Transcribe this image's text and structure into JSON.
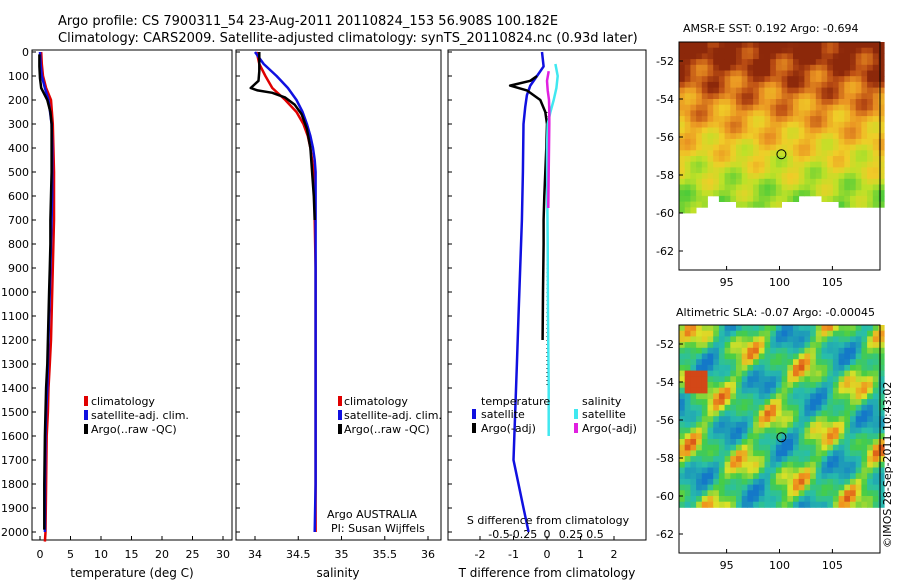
{
  "title_line1": "Argo profile: CS 7900311_54 23-Aug-2011 20110824_153 56.908S 100.182E",
  "title_line2": "Climatology: CARS2009. Satellite-adjusted climatology: synTS_20110824.nc (0.93d later)",
  "timestamp": "©IMOS 28-Sep-2011 10:43:02",
  "colors": {
    "red": "#e00000",
    "blue": "#1010e0",
    "black": "#000000",
    "cyan": "#40e8f0",
    "magenta": "#e020e0"
  },
  "chart_data": [
    {
      "id": "temperature",
      "type": "line",
      "xlabel": "temperature (deg C)",
      "xlim": [
        -2,
        31
      ],
      "xticks": [
        "0",
        "5",
        "10",
        "15",
        "20",
        "25",
        "30"
      ],
      "xtick_values": [
        0,
        5,
        10,
        15,
        20,
        25,
        30
      ],
      "ylim": [
        0,
        2050
      ],
      "ytick_values": [
        0,
        100,
        200,
        300,
        400,
        500,
        600,
        700,
        800,
        900,
        1000,
        1100,
        1200,
        1300,
        1400,
        1500,
        1600,
        1700,
        1800,
        1900,
        2000
      ],
      "yticks": [
        "0",
        "100",
        "200",
        "300",
        "400",
        "500",
        "600",
        "700",
        "800",
        "900",
        "1000",
        "1100",
        "1200",
        "1300",
        "1400",
        "1500",
        "1600",
        "1700",
        "1800",
        "1900",
        "2000"
      ],
      "legend": [
        "climatology",
        "satellite-adj. clim.",
        "Argo(..raw -QC)"
      ],
      "series": [
        {
          "name": "climatology",
          "color": "red",
          "x": [
            0.2,
            0.3,
            0.5,
            1.0,
            1.8,
            2.1,
            2.2,
            2.3,
            2.3,
            2.3,
            2.2,
            2.1,
            2.0,
            1.9,
            1.8,
            1.6,
            1.4,
            1.3,
            1.1,
            1.0,
            0.9,
            0.8
          ],
          "y": [
            0,
            50,
            100,
            150,
            200,
            300,
            400,
            500,
            600,
            700,
            800,
            900,
            1000,
            1100,
            1200,
            1300,
            1400,
            1500,
            1600,
            1800,
            2000,
            2040
          ]
        },
        {
          "name": "satellite-adj. clim.",
          "color": "blue",
          "x": [
            0.0,
            0.1,
            0.3,
            0.8,
            1.4,
            1.9,
            2.0,
            2.0,
            2.0,
            1.9,
            1.8,
            1.7,
            1.6,
            1.5,
            1.4,
            1.3,
            1.2,
            1.0,
            0.9,
            0.8,
            0.8
          ],
          "y": [
            0,
            50,
            100,
            150,
            200,
            300,
            400,
            500,
            600,
            700,
            800,
            900,
            1000,
            1100,
            1200,
            1300,
            1400,
            1500,
            1600,
            1800,
            2000
          ]
        },
        {
          "name": "Argo(..raw -QC)",
          "color": "black",
          "x": [
            -0.1,
            -0.1,
            0.0,
            0.2,
            1.2,
            1.7,
            1.9,
            1.9,
            1.9,
            1.8,
            1.7,
            1.7,
            1.6,
            1.5,
            1.4,
            1.3,
            1.2,
            1.0,
            0.9,
            0.8,
            0.7,
            0.7
          ],
          "y": [
            10,
            60,
            110,
            150,
            200,
            250,
            300,
            400,
            500,
            600,
            700,
            800,
            900,
            1000,
            1100,
            1200,
            1300,
            1400,
            1500,
            1600,
            1800,
            1990
          ]
        }
      ]
    },
    {
      "id": "salinity",
      "type": "line",
      "xlabel": "salinity",
      "xlim": [
        33.8,
        36.05
      ],
      "xticks": [
        "34",
        "34.5",
        "35",
        "35.5",
        "36"
      ],
      "xtick_values": [
        34,
        34.5,
        35,
        35.5,
        36
      ],
      "ylim": [
        0,
        2050
      ],
      "legend": [
        "climatology",
        "satellite-adj. clim.",
        "Argo(..raw -QC)"
      ],
      "annotation": [
        "Argo AUSTRALIA",
        "PI: Susan Wijffels"
      ],
      "series": [
        {
          "name": "climatology",
          "color": "red",
          "x": [
            34.02,
            34.05,
            34.12,
            34.2,
            34.35,
            34.48,
            34.56,
            34.61,
            34.64,
            34.66,
            34.68,
            34.69,
            34.69,
            34.7,
            34.7,
            34.7,
            34.7,
            34.7
          ],
          "y": [
            0,
            50,
            100,
            150,
            200,
            250,
            300,
            350,
            400,
            450,
            500,
            600,
            700,
            900,
            1200,
            1500,
            1800,
            2000
          ]
        },
        {
          "name": "satellite-adj. clim.",
          "color": "blue",
          "x": [
            34.0,
            34.1,
            34.25,
            34.38,
            34.48,
            34.55,
            34.6,
            34.64,
            34.67,
            34.69,
            34.7,
            34.7,
            34.7,
            34.7,
            34.7,
            34.7,
            34.69
          ],
          "y": [
            0,
            50,
            100,
            150,
            200,
            250,
            300,
            350,
            400,
            450,
            500,
            600,
            800,
            1100,
            1500,
            1800,
            2000
          ]
        },
        {
          "name": "Argo(..raw -QC)",
          "color": "black",
          "x": [
            34.05,
            34.05,
            34.04,
            33.95,
            34.03,
            34.2,
            34.35,
            34.46,
            34.54,
            34.6,
            34.64,
            34.66,
            34.68,
            34.69
          ],
          "y": [
            0,
            80,
            120,
            150,
            160,
            170,
            190,
            220,
            260,
            320,
            400,
            500,
            600,
            700
          ]
        }
      ]
    },
    {
      "id": "difference",
      "type": "line",
      "xlabel": "T difference from climatology",
      "xlabel_top": "S difference from climatology",
      "xlim": [
        -2.8,
        2.8
      ],
      "xticks": [
        "-2",
        "-1",
        "0",
        "1",
        "2"
      ],
      "xtick_values": [
        -2,
        -1,
        0,
        1,
        2
      ],
      "xticks_top": [
        "-0.5",
        "-0.25",
        "0",
        "0.25",
        "0.5"
      ],
      "xtick_top_values": [
        -0.5,
        -0.25,
        0,
        0.25,
        0.5
      ],
      "ylim": [
        0,
        2050
      ],
      "legend_left_title": "temperature",
      "legend_right_title": "salinity",
      "legend_left": [
        "satellite",
        "Argo(-adj)"
      ],
      "legend_right": [
        "satellite",
        "Argo(-adj)"
      ],
      "series": [
        {
          "name": "T satellite",
          "color": "blue",
          "x": [
            -0.15,
            -0.1,
            -0.3,
            -0.5,
            -0.6,
            -0.65,
            -0.7,
            -0.72,
            -0.75,
            -0.8,
            -0.85,
            -0.9,
            -0.95,
            -1.0,
            -0.7,
            -0.55
          ],
          "y": [
            0,
            60,
            100,
            140,
            180,
            230,
            300,
            500,
            700,
            900,
            1100,
            1300,
            1500,
            1700,
            1900,
            2000
          ]
        },
        {
          "name": "T Argo(-adj)",
          "color": "black",
          "x": [
            -0.3,
            -0.5,
            -1.1,
            -0.6,
            -0.2,
            -0.05,
            0.0,
            -0.02,
            -0.05,
            -0.08,
            -0.1,
            -0.1,
            -0.12,
            -0.13
          ],
          "y": [
            100,
            120,
            140,
            160,
            200,
            250,
            300,
            400,
            500,
            600,
            700,
            800,
            1000,
            1200
          ]
        },
        {
          "name": "S satellite",
          "color": "cyan",
          "x": [
            0.25,
            0.32,
            0.28,
            0.2,
            0.1,
            0.02,
            0.0,
            0.01,
            0.02,
            0.03,
            0.05,
            0.05
          ],
          "y": [
            50,
            100,
            150,
            200,
            250,
            300,
            400,
            600,
            800,
            1100,
            1400,
            1600
          ]
        },
        {
          "name": "S Argo(-adj)",
          "color": "magenta",
          "x": [
            0.05,
            0.0,
            0.02,
            0.06,
            0.07,
            0.07,
            0.06,
            0.05,
            0.04
          ],
          "y": [
            80,
            120,
            160,
            200,
            250,
            300,
            400,
            500,
            650
          ]
        }
      ]
    },
    {
      "id": "sst_map",
      "type": "heatmap",
      "title": "AMSR-E SST: 0.192 Argo: -0.694",
      "xlim": [
        90.5,
        109.5
      ],
      "ylim": [
        -63,
        -51
      ],
      "xticks": [
        "95",
        "100",
        "105"
      ],
      "xtick_values": [
        95,
        100,
        105
      ],
      "yticks": [
        "-52",
        "-54",
        "-56",
        "-58",
        "-60",
        "-62"
      ],
      "ytick_values": [
        -52,
        -54,
        -56,
        -58,
        -60,
        -62
      ],
      "marker": {
        "lon": 100.182,
        "lat": -56.908
      }
    },
    {
      "id": "sla_map",
      "type": "heatmap",
      "title": "Altimetric SLA: -0.07 Argo: -0.00045",
      "xlim": [
        90.5,
        109.5
      ],
      "ylim": [
        -63,
        -51
      ],
      "xticks": [
        "95",
        "100",
        "105"
      ],
      "xtick_values": [
        95,
        100,
        105
      ],
      "yticks": [
        "-52",
        "-54",
        "-56",
        "-58",
        "-60",
        "-62"
      ],
      "ytick_values": [
        -52,
        -54,
        -56,
        -58,
        -60,
        -62
      ],
      "marker": {
        "lon": 100.182,
        "lat": -56.908
      }
    }
  ]
}
